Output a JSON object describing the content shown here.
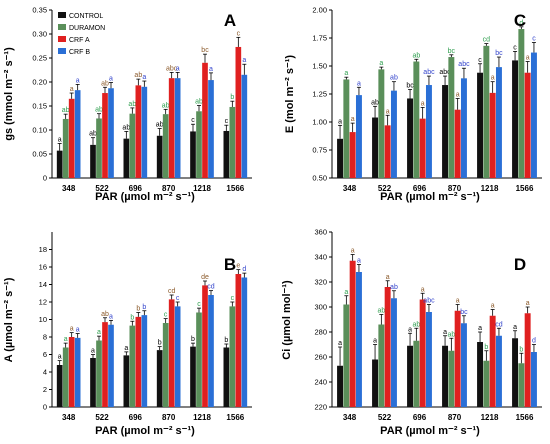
{
  "legend": [
    {
      "name": "CONTROL",
      "color": "#111111"
    },
    {
      "name": "DURAMON",
      "color": "#5a8f5a"
    },
    {
      "name": "CRF A",
      "color": "#e02020"
    },
    {
      "name": "CRF B",
      "color": "#2a6fd6"
    }
  ],
  "colors": {
    "bars": [
      "#111111",
      "#5a8f5a",
      "#e02020",
      "#2a6fd6"
    ],
    "letters": [
      "#000000",
      "#2e9e4e",
      "#8b5a2b",
      "#3344cc"
    ]
  },
  "chart_data": [
    {
      "panel": "A",
      "type": "bar",
      "ylabel": "gs (mmol m⁻² s⁻¹)",
      "xlabel": "PAR (µmol m⁻² s⁻¹)",
      "ylim": [
        0,
        0.35
      ],
      "yticks": [
        "0",
        "0.05",
        "0.10",
        "0.15",
        "0.20",
        "0.25",
        "0.30",
        "0.35"
      ],
      "categories": [
        "348",
        "522",
        "696",
        "870",
        "1218",
        "1566"
      ],
      "series": [
        {
          "name": "CONTROL",
          "values": [
            0.057,
            0.069,
            0.082,
            0.088,
            0.097,
            0.098
          ],
          "errors": [
            0.015,
            0.015,
            0.015,
            0.015,
            0.015,
            0.012
          ],
          "letters": [
            "a",
            "ab",
            "ab",
            "ab",
            "c",
            "c"
          ]
        },
        {
          "name": "DURAMON",
          "values": [
            0.123,
            0.124,
            0.134,
            0.133,
            0.139,
            0.148
          ],
          "errors": [
            0.01,
            0.01,
            0.012,
            0.01,
            0.012,
            0.012
          ],
          "letters": [
            "ab",
            "ab",
            "ab",
            "ab",
            "ab",
            "b"
          ]
        },
        {
          "name": "CRF A",
          "values": [
            0.165,
            0.177,
            0.193,
            0.208,
            0.24,
            0.273
          ],
          "errors": [
            0.012,
            0.012,
            0.013,
            0.012,
            0.018,
            0.02
          ],
          "letters": [
            "a",
            "ab",
            "ab",
            "abc",
            "bc",
            "c"
          ]
        },
        {
          "name": "CRF B",
          "values": [
            0.183,
            0.187,
            0.19,
            0.208,
            0.204,
            0.215
          ],
          "errors": [
            0.012,
            0.012,
            0.012,
            0.012,
            0.015,
            0.022
          ],
          "letters": [
            "a",
            "a",
            "a",
            "a",
            "a",
            "a"
          ]
        }
      ]
    },
    {
      "panel": "B",
      "type": "bar",
      "ylabel": "A (µmol m⁻² s⁻¹)",
      "xlabel": "PAR (µmol m⁻² s⁻¹)",
      "ylim": [
        0,
        20
      ],
      "yticks": [
        "0",
        "2",
        "4",
        "6",
        "8",
        "10",
        "12",
        "14",
        "16",
        "18"
      ],
      "categories": [
        "348",
        "522",
        "696",
        "870",
        "1218",
        "1566"
      ],
      "series": [
        {
          "name": "CONTROL",
          "values": [
            4.8,
            5.6,
            5.9,
            6.5,
            6.9,
            6.8
          ],
          "errors": [
            0.5,
            0.4,
            0.4,
            0.4,
            0.4,
            0.4
          ],
          "letters": [
            "a",
            "a",
            "a",
            "b",
            "b",
            "b"
          ]
        },
        {
          "name": "DURAMON",
          "values": [
            6.8,
            7.6,
            9.3,
            9.6,
            10.8,
            11.5
          ],
          "errors": [
            0.5,
            0.5,
            0.5,
            0.5,
            0.5,
            0.5
          ],
          "letters": [
            "a",
            "a",
            "b",
            "c",
            "c",
            "c"
          ]
        },
        {
          "name": "CRF A",
          "values": [
            8.0,
            9.7,
            10.3,
            12.3,
            13.9,
            15.2
          ],
          "errors": [
            0.5,
            0.5,
            0.5,
            0.5,
            0.5,
            0.5
          ],
          "letters": [
            "a",
            "ab",
            "b",
            "cd",
            "de",
            "e"
          ]
        },
        {
          "name": "CRF B",
          "values": [
            7.9,
            9.4,
            10.5,
            11.5,
            12.8,
            14.8
          ],
          "errors": [
            0.5,
            0.5,
            0.5,
            0.5,
            0.5,
            0.5
          ],
          "letters": [
            "a",
            "a",
            "b",
            "c",
            "cd",
            "d"
          ]
        }
      ]
    },
    {
      "panel": "C",
      "type": "bar",
      "ylabel": "E (mol m⁻² s⁻¹)",
      "xlabel": "PAR (µmol m⁻² s⁻¹)",
      "ylim": [
        0.5,
        2.0
      ],
      "yticks": [
        "0.50",
        "0.75",
        "1.00",
        "1.25",
        "1.50",
        "1.75",
        "2.00"
      ],
      "categories": [
        "348",
        "522",
        "696",
        "870",
        "1218",
        "1566"
      ],
      "series": [
        {
          "name": "CONTROL",
          "values": [
            0.85,
            1.04,
            1.21,
            1.33,
            1.44,
            1.55
          ],
          "errors": [
            0.12,
            0.1,
            0.08,
            0.08,
            0.08,
            0.08
          ],
          "letters": [
            "a",
            "ab",
            "bc",
            "abc",
            "c",
            "c"
          ]
        },
        {
          "name": "DURAMON",
          "values": [
            1.38,
            1.47,
            1.54,
            1.58,
            1.68,
            1.83
          ],
          "errors": [
            0.02,
            0.02,
            0.02,
            0.02,
            0.02,
            0.02
          ],
          "letters": [
            "a",
            "a",
            "ab",
            "bc",
            "cd",
            "d"
          ]
        },
        {
          "name": "CRF A",
          "values": [
            0.91,
            0.97,
            1.03,
            1.11,
            1.26,
            1.44
          ],
          "errors": [
            0.08,
            0.09,
            0.1,
            0.1,
            0.1,
            0.1
          ],
          "letters": [
            "a",
            "a",
            "a",
            "a",
            "a",
            "a"
          ]
        },
        {
          "name": "CRF B",
          "values": [
            1.24,
            1.28,
            1.33,
            1.39,
            1.49,
            1.62
          ],
          "errors": [
            0.07,
            0.08,
            0.08,
            0.09,
            0.09,
            0.09
          ],
          "letters": [
            "a",
            "ab",
            "abc",
            "abc",
            "bc",
            "c"
          ]
        }
      ]
    },
    {
      "panel": "D",
      "type": "bar",
      "ylabel": "Ci (µmol mol⁻¹)",
      "xlabel": "PAR (µmol m⁻² s⁻¹)",
      "ylim": [
        220,
        360
      ],
      "yticks": [
        "220",
        "240",
        "260",
        "280",
        "300",
        "320",
        "340",
        "360"
      ],
      "categories": [
        "348",
        "522",
        "696",
        "870",
        "1218",
        "1566"
      ],
      "series": [
        {
          "name": "CONTROL",
          "values": [
            253,
            258,
            269,
            269,
            272,
            275
          ],
          "errors": [
            15,
            12,
            10,
            8,
            8,
            6
          ],
          "letters": [
            "a",
            "a",
            "a",
            "a",
            "a",
            "a"
          ]
        },
        {
          "name": "DURAMON",
          "values": [
            302,
            286,
            273,
            265,
            257,
            255
          ],
          "errors": [
            7,
            8,
            10,
            10,
            8,
            8
          ],
          "letters": [
            "a",
            "ab",
            "ab",
            "ab",
            "b",
            "b"
          ]
        },
        {
          "name": "CRF A",
          "values": [
            337,
            316,
            306,
            297,
            293,
            295
          ],
          "errors": [
            5,
            5,
            5,
            5,
            5,
            5
          ],
          "letters": [
            "a",
            "a",
            "a",
            "a",
            "a",
            "a"
          ]
        },
        {
          "name": "CRF B",
          "values": [
            328,
            307,
            296,
            287,
            277,
            264
          ],
          "errors": [
            6,
            6,
            6,
            6,
            6,
            6
          ],
          "letters": [
            "a",
            "ab",
            "abc",
            "bc",
            "cd",
            "d"
          ]
        }
      ]
    }
  ]
}
